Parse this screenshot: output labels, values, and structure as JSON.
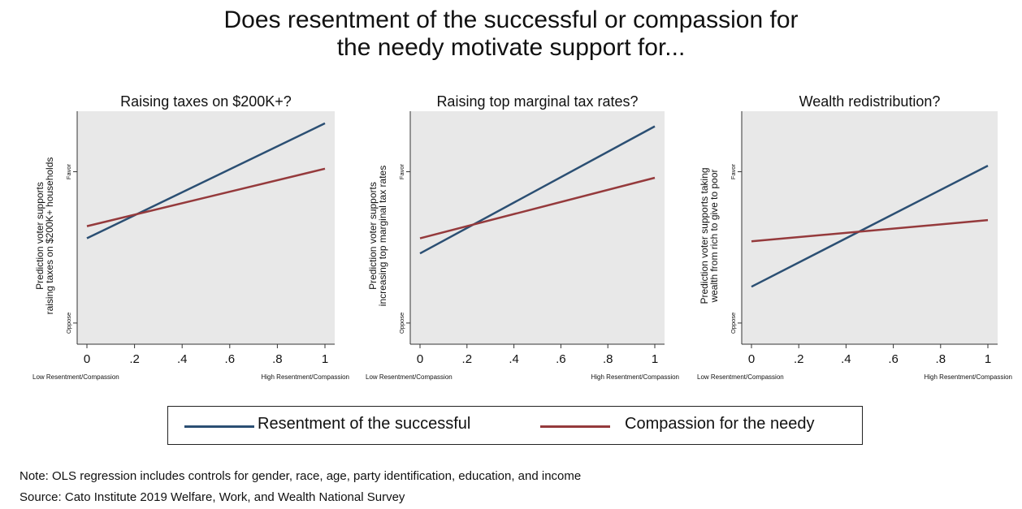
{
  "title_line1": "Does resentment of the successful or compassion for",
  "title_line2": "the needy motivate support for...",
  "colors": {
    "resentment": "#2b4f73",
    "compassion": "#953a3c",
    "plot_bg": "#e8e8e8"
  },
  "legend": {
    "resentment": "Resentment of the successful",
    "compassion": "Compassion for the needy"
  },
  "note": "Note: OLS regression includes controls for gender, race, age, party identification, education, and income",
  "source": "Source: Cato Institute 2019 Welfare, Work, and Wealth National Survey",
  "chart_data": [
    {
      "type": "line",
      "title": "Raising taxes on $200K+?",
      "ylabel_lines": [
        "Prediction voter supports",
        "raising taxes on $200K+ households"
      ],
      "ytick_labels": [
        "Oppose",
        "Favor"
      ],
      "xlabel_left": "Low Resentment/Compassion",
      "xlabel_right": "High Resentment/Compassion",
      "x_ticks": [
        "0",
        ".2",
        ".4",
        ".6",
        ".8",
        "1"
      ],
      "xlim": [
        0,
        1
      ],
      "ylim": [
        0.43,
        1.2
      ],
      "series": [
        {
          "name": "Resentment of the successful",
          "x": [
            0,
            1
          ],
          "y": [
            0.78,
            1.16
          ]
        },
        {
          "name": "Compassion for the needy",
          "x": [
            0,
            1
          ],
          "y": [
            0.82,
            1.01
          ]
        }
      ]
    },
    {
      "type": "line",
      "title": "Raising top marginal tax rates?",
      "ylabel_lines": [
        "Prediction voter supports",
        "increasing top marginal tax rates"
      ],
      "ytick_labels": [
        "Oppose",
        "Favor"
      ],
      "xlabel_left": "Low Resentment/Compassion",
      "xlabel_right": "High Resentment/Compassion",
      "x_ticks": [
        "0",
        ".2",
        ".4",
        ".6",
        ".8",
        "1"
      ],
      "xlim": [
        0,
        1
      ],
      "ylim": [
        0.43,
        1.2
      ],
      "series": [
        {
          "name": "Resentment of the successful",
          "x": [
            0,
            1
          ],
          "y": [
            0.73,
            1.15
          ]
        },
        {
          "name": "Compassion for the needy",
          "x": [
            0,
            1
          ],
          "y": [
            0.78,
            0.98
          ]
        }
      ]
    },
    {
      "type": "line",
      "title": "Wealth redistribution?",
      "ylabel_lines": [
        "Prediction voter supports taking",
        "wealth from rich to give to poor"
      ],
      "ytick_labels": [
        "Oppose",
        "Favor"
      ],
      "xlabel_left": "Low Resentment/Compassion",
      "xlabel_right": "High Resentment/Compassion",
      "x_ticks": [
        "0",
        ".2",
        ".4",
        ".6",
        ".8",
        "1"
      ],
      "xlim": [
        0,
        1
      ],
      "ylim": [
        0.43,
        1.2
      ],
      "series": [
        {
          "name": "Resentment of the successful",
          "x": [
            0,
            1
          ],
          "y": [
            0.62,
            1.02
          ]
        },
        {
          "name": "Compassion for the needy",
          "x": [
            0,
            1
          ],
          "y": [
            0.77,
            0.84
          ]
        }
      ]
    }
  ]
}
